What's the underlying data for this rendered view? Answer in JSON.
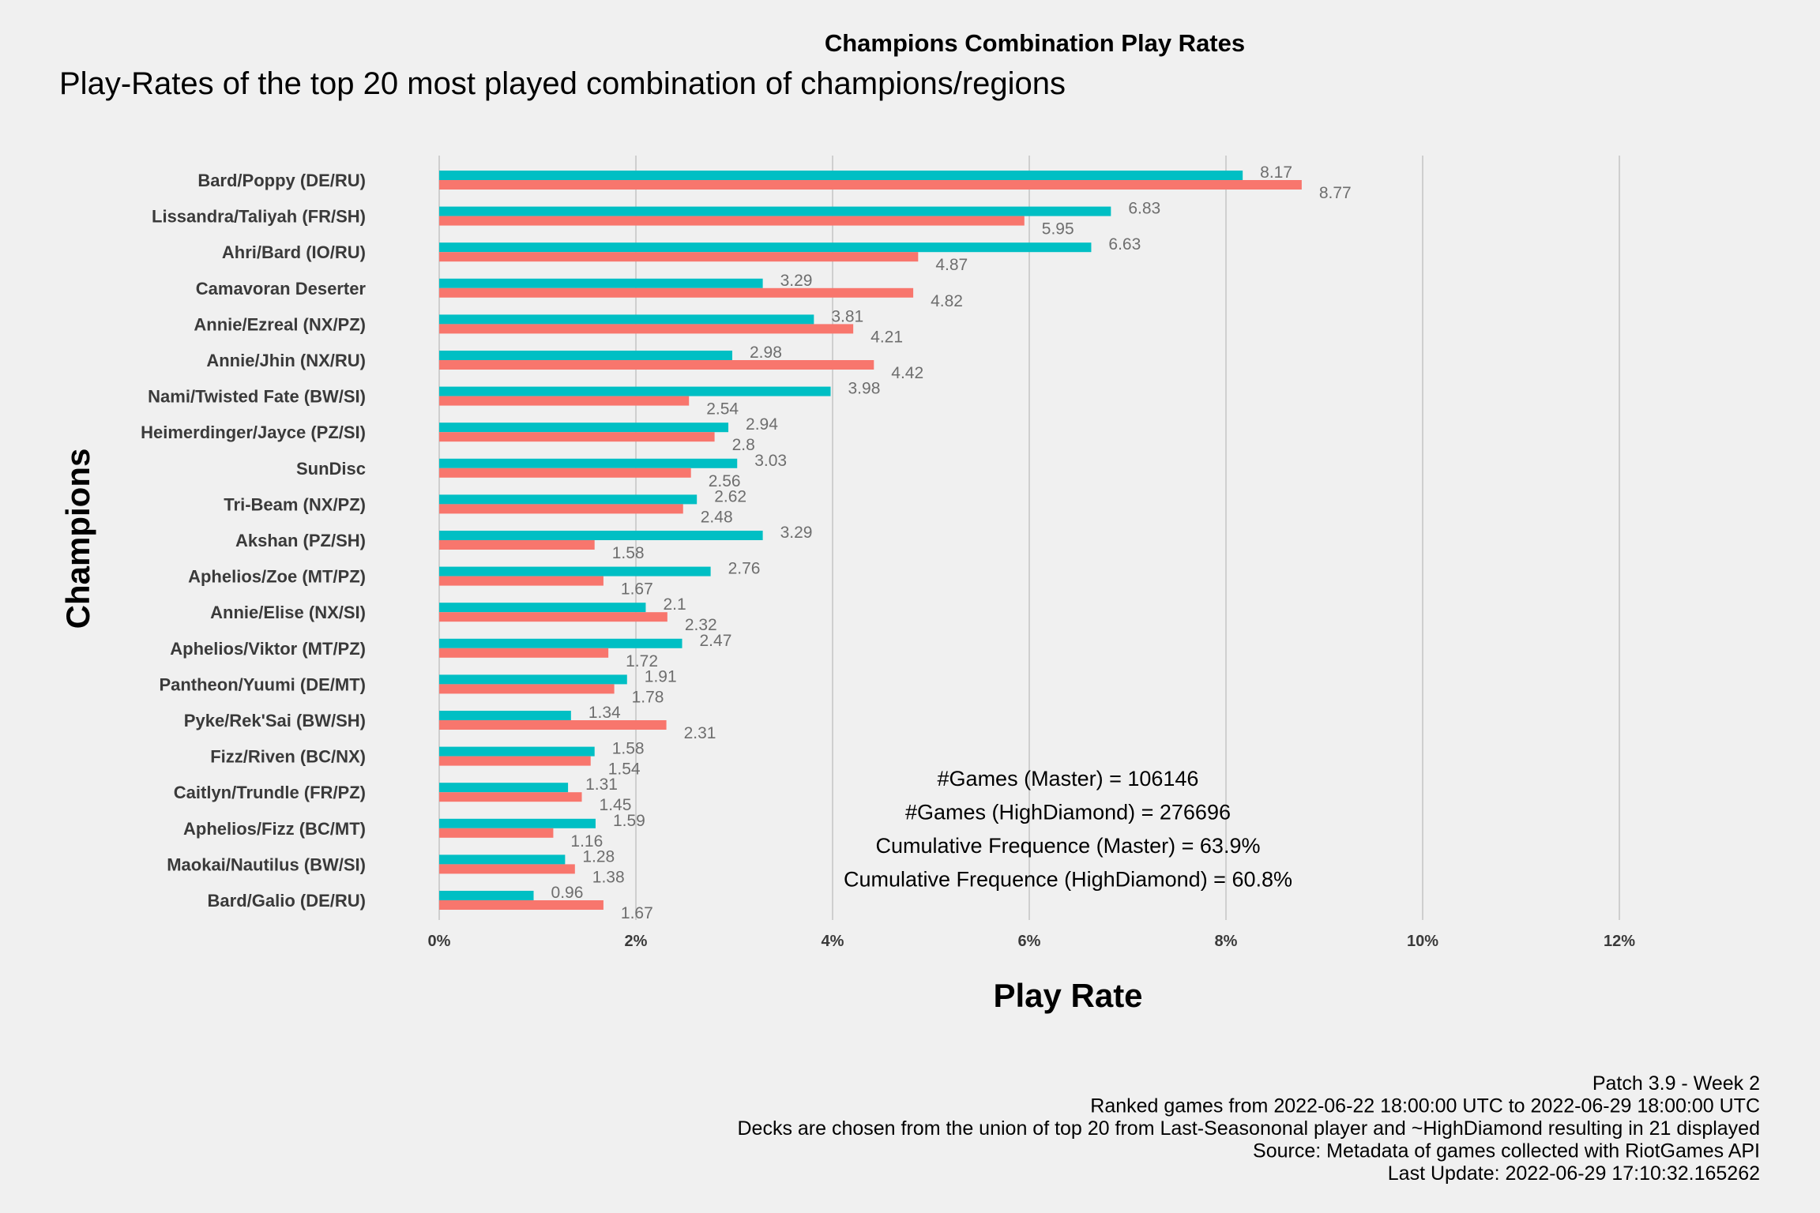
{
  "chart_data": {
    "type": "bar",
    "title": "Champions Combination Play Rates",
    "subtitle": "Play-Rates of the top 20 most played combination of champions/regions",
    "xlabel": "Play Rate",
    "ylabel": "Champions",
    "xlim": [
      0,
      12
    ],
    "x_ticks": [
      "0%",
      "2%",
      "4%",
      "6%",
      "8%",
      "10%",
      "12%"
    ],
    "grid": "vertical",
    "categories": [
      "Bard/Poppy (DE/RU)",
      "Lissandra/Taliyah (FR/SH)",
      "Ahri/Bard (IO/RU)",
      "Camavoran Deserter",
      "Annie/Ezreal (NX/PZ)",
      "Annie/Jhin (NX/RU)",
      "Nami/Twisted Fate (BW/SI)",
      "Heimerdinger/Jayce (PZ/SI)",
      "SunDisc",
      "Tri-Beam (NX/PZ)",
      "Akshan (PZ/SH)",
      "Aphelios/Zoe (MT/PZ)",
      "Annie/Elise (NX/SI)",
      "Aphelios/Viktor (MT/PZ)",
      "Pantheon/Yuumi (DE/MT)",
      "Pyke/Rek'Sai (BW/SH)",
      "Fizz/Riven (BC/NX)",
      "Caitlyn/Trundle (FR/PZ)",
      "Aphelios/Fizz (BC/MT)",
      "Maokai/Nautilus (BW/SI)",
      "Bard/Galio (DE/RU)"
    ],
    "series": [
      {
        "color": "#00bfc4",
        "values": [
          8.17,
          6.83,
          6.63,
          3.29,
          3.81,
          2.98,
          3.98,
          2.94,
          3.03,
          2.62,
          3.29,
          2.76,
          2.1,
          2.47,
          1.91,
          1.34,
          1.58,
          1.31,
          1.59,
          1.28,
          0.96
        ],
        "labels": [
          "8.17",
          "6.83",
          "6.63",
          "3.29",
          "3.81",
          "2.98",
          "3.98",
          "2.94",
          "3.03",
          "2.62",
          "3.29",
          "2.76",
          "2.1",
          "2.47",
          "1.91",
          "1.34",
          "1.58",
          "1.31",
          "1.59",
          "1.28",
          "0.96"
        ]
      },
      {
        "color": "#f8766d",
        "values": [
          8.77,
          5.95,
          4.87,
          4.82,
          4.21,
          4.42,
          2.54,
          2.8,
          2.56,
          2.48,
          1.58,
          1.67,
          2.32,
          1.72,
          1.78,
          2.31,
          1.54,
          1.45,
          1.16,
          1.38,
          1.67
        ],
        "labels": [
          "8.77",
          "5.95",
          "4.87",
          "4.82",
          "4.21",
          "4.42",
          "2.54",
          "2.8",
          "2.56",
          "2.48",
          "1.58",
          "1.67",
          "2.32",
          "1.72",
          "1.78",
          "2.31",
          "1.54",
          "1.45",
          "1.16",
          "1.38",
          "1.67"
        ]
      }
    ],
    "annotations": [
      "#Games (Master) = 106146",
      "#Games (HighDiamond) = 276696",
      "Cumulative Frequence (Master) = 63.9%",
      "Cumulative Frequence (HighDiamond) = 60.8%"
    ],
    "caption": [
      "Patch 3.9 - Week 2",
      "Ranked games from 2022-06-22 18:00:00 UTC to 2022-06-29 18:00:00 UTC",
      "Decks are chosen from the union of top 20 from Last-Seasononal player and ~HighDiamond resulting in 21 displayed",
      "Source: Metadata of games collected with RiotGames API",
      "Last Update: 2022-06-29 17:10:32.165262"
    ]
  }
}
